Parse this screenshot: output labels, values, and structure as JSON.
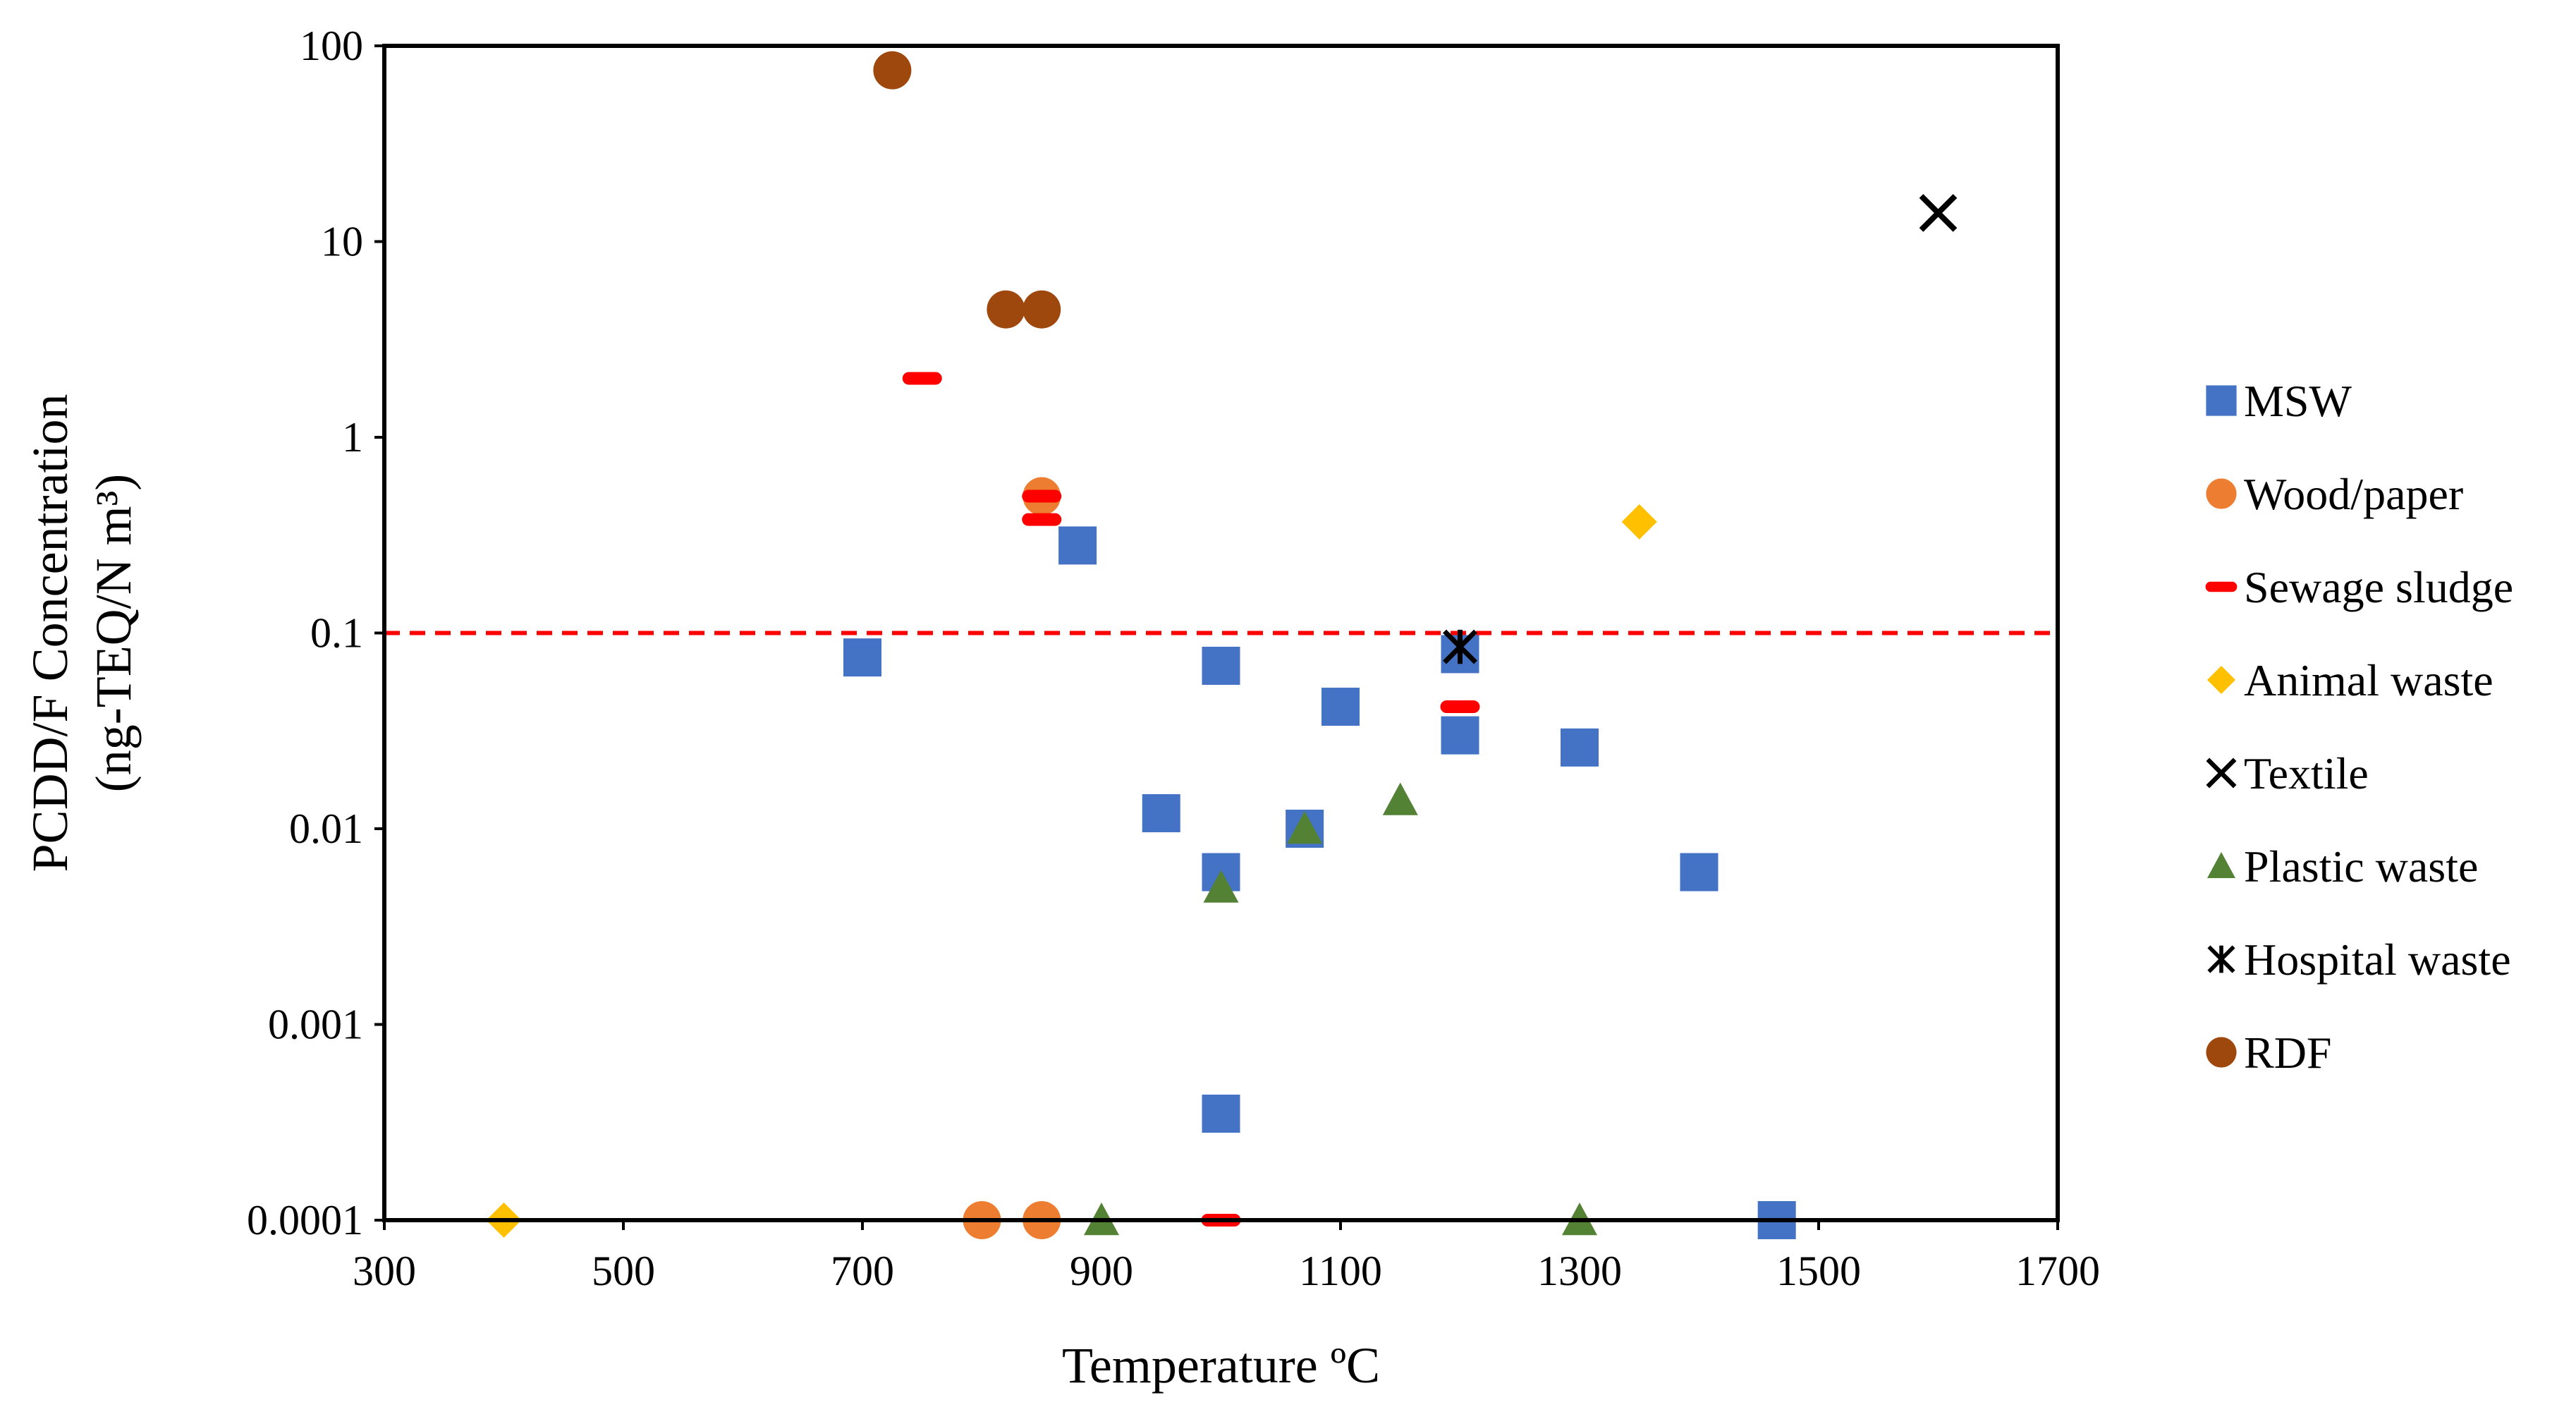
{
  "chart_data": {
    "type": "scatter",
    "title": "",
    "xlabel": "Temperature ºC",
    "ylabel_lines": [
      "PCDD/F Concentration",
      "(ng-TEQ/N m³)"
    ],
    "xlim": [
      300,
      1700
    ],
    "ylim": [
      0.0001,
      100
    ],
    "yscale": "log",
    "xticks": [
      300,
      500,
      700,
      900,
      1100,
      1300,
      1500,
      1700
    ],
    "yticks": [
      0.0001,
      0.001,
      0.01,
      0.1,
      1,
      10,
      100
    ],
    "ytick_labels": [
      "0.0001",
      "0.001",
      "0.01",
      "0.1",
      "1",
      "10",
      "100"
    ],
    "xtick_labels": [
      "300",
      "500",
      "700",
      "900",
      "1100",
      "1300",
      "1500",
      "1700"
    ],
    "reference_line": {
      "y": 0.1,
      "style": "dashed",
      "color": "#ff0000"
    },
    "legend_position": "right",
    "series": [
      {
        "name": "MSW",
        "marker": "square",
        "color": "#4472c4",
        "points": [
          [
            700,
            0.075
          ],
          [
            880,
            0.28
          ],
          [
            950,
            0.012
          ],
          [
            1000,
            0.068
          ],
          [
            1000,
            0.006
          ],
          [
            1000,
            0.00035
          ],
          [
            1070,
            0.01
          ],
          [
            1100,
            0.042
          ],
          [
            1200,
            0.078
          ],
          [
            1200,
            0.03
          ],
          [
            1300,
            0.026
          ],
          [
            1400,
            0.006
          ],
          [
            1465,
            0.0001
          ]
        ]
      },
      {
        "name": "Wood/paper",
        "marker": "circle",
        "color": "#ed7d31",
        "points": [
          [
            850,
            0.5
          ],
          [
            800,
            0.0001
          ],
          [
            850,
            0.0001
          ]
        ]
      },
      {
        "name": "Sewage sludge",
        "marker": "dash",
        "color": "#ff0000",
        "points": [
          [
            750,
            2.0
          ],
          [
            850,
            0.5
          ],
          [
            850,
            0.38
          ],
          [
            1200,
            0.042
          ],
          [
            1000,
            0.0001
          ]
        ]
      },
      {
        "name": "Animal waste",
        "marker": "diamond",
        "color": "#ffc000",
        "points": [
          [
            1350,
            0.37
          ],
          [
            400,
            0.0001
          ]
        ]
      },
      {
        "name": "Textile",
        "marker": "x",
        "color": "#000000",
        "points": [
          [
            1600,
            14
          ]
        ]
      },
      {
        "name": "Plastic waste",
        "marker": "triangle",
        "color": "#548235",
        "points": [
          [
            1150,
            0.014
          ],
          [
            1070,
            0.01
          ],
          [
            1000,
            0.005
          ],
          [
            900,
            0.0001
          ],
          [
            1300,
            0.0001
          ]
        ]
      },
      {
        "name": "Hospital waste",
        "marker": "star",
        "color": "#000000",
        "points": [
          [
            1200,
            0.085
          ]
        ]
      },
      {
        "name": "RDF",
        "marker": "circle",
        "color": "#9e480e",
        "points": [
          [
            725,
            75
          ],
          [
            820,
            4.5
          ],
          [
            850,
            4.5
          ]
        ]
      }
    ]
  }
}
